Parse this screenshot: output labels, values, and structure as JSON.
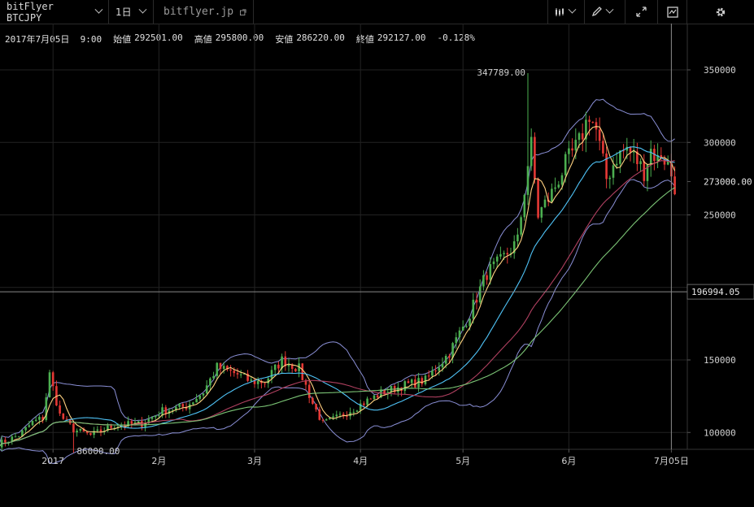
{
  "toolbar": {
    "symbol": "bitFlyer BTCJPY",
    "interval": "1日",
    "source": "bitflyer.jp"
  },
  "info": {
    "date": "2017年7月05日  9:00",
    "open_label": "始値",
    "open": "292501.00",
    "high_label": "高値",
    "high": "295800.00",
    "low_label": "安値",
    "low": "286220.00",
    "close_label": "終値",
    "close": "292127.00",
    "change": "-0.128%"
  },
  "axis": {
    "y_ticks": [
      "350000",
      "300000",
      "250000",
      "150000",
      "100000"
    ],
    "price_label": "273000.00",
    "crosshair_label": "196994.05",
    "x_ticks": [
      "2017",
      "2月",
      "3月",
      "4月",
      "5月",
      "6月",
      "7月05日"
    ],
    "max_label": "347789.00",
    "min_label": "86000.00"
  },
  "colors": {
    "background": "#000000",
    "grid": "#222222",
    "up": "#4caf50",
    "down": "#e53935",
    "bb_band": "#8a8fd6",
    "ma_fast": "#ffd180",
    "ma_mid": "#4fc3f7",
    "ma_slow": "#b04060",
    "ma_long": "#7cc576"
  },
  "icons": [
    "candle-type-icon",
    "draw-pencil-icon",
    "fullscreen-icon",
    "indicator-chart-icon",
    "settings-gear-icon",
    "external-link-icon"
  ],
  "chart_data": {
    "type": "line",
    "title": "",
    "x_start": "2016-12-25",
    "ylim": [
      80000,
      370000
    ],
    "close_anchors": [
      [
        0,
        92000
      ],
      [
        6,
        98000
      ],
      [
        10,
        107000
      ],
      [
        13,
        110000
      ],
      [
        15,
        140000
      ],
      [
        18,
        112000
      ],
      [
        22,
        102000
      ],
      [
        27,
        98000
      ],
      [
        34,
        105000
      ],
      [
        42,
        106000
      ],
      [
        48,
        115000
      ],
      [
        55,
        118000
      ],
      [
        60,
        128000
      ],
      [
        64,
        145000
      ],
      [
        70,
        140000
      ],
      [
        74,
        135000
      ],
      [
        78,
        135000
      ],
      [
        83,
        150000
      ],
      [
        88,
        144000
      ],
      [
        92,
        120000
      ],
      [
        95,
        106000
      ],
      [
        99,
        110000
      ],
      [
        105,
        118000
      ],
      [
        112,
        127000
      ],
      [
        118,
        132000
      ],
      [
        125,
        136000
      ],
      [
        132,
        155000
      ],
      [
        138,
        182000
      ],
      [
        143,
        210000
      ],
      [
        147,
        218000
      ],
      [
        152,
        232000
      ],
      [
        155,
        285000
      ],
      [
        156,
        298000
      ],
      [
        158,
        250000
      ],
      [
        162,
        265000
      ],
      [
        166,
        285000
      ],
      [
        170,
        300000
      ],
      [
        173,
        320000
      ],
      [
        175,
        308000
      ],
      [
        178,
        275000
      ],
      [
        181,
        290000
      ],
      [
        184,
        296000
      ],
      [
        187,
        287000
      ],
      [
        189,
        280000
      ],
      [
        191,
        295000
      ],
      [
        193,
        288000
      ],
      [
        194,
        292000
      ],
      [
        196,
        285000
      ],
      [
        198,
        270000
      ]
    ],
    "wicks": [
      [
        155,
        347789
      ],
      [
        22,
        86000
      ]
    ]
  }
}
